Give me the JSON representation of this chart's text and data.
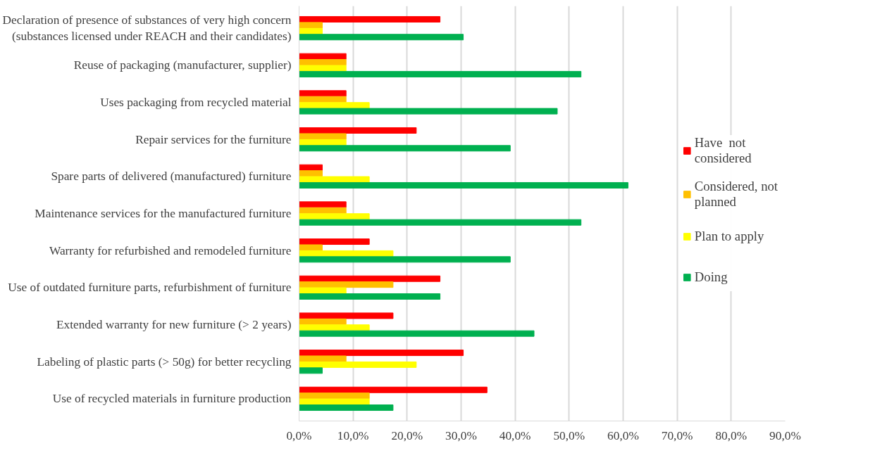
{
  "chart_data": {
    "type": "bar",
    "orientation": "horizontal",
    "categories": [
      "Declaration of presence of substances of very high concern (substances licensed under REACH and their candidates)",
      "Reuse of packaging (manufacturer, supplier)",
      "Uses packaging from recycled material",
      "Repair services for the furniture",
      "Spare parts of delivered (manufactured) furniture",
      "Maintenance services for the manufactured furniture",
      "Warranty for refurbished and remodeled furniture",
      "Use of outdated furniture parts, refurbishment of furniture",
      "Extended warranty for new furniture (> 2 years)",
      "Labeling of plastic parts (> 50g) for better recycling",
      "Use of recycled materials in furniture production"
    ],
    "series": [
      {
        "name": "Have  not considered",
        "color": "#ff0000",
        "values": [
          26.1,
          8.7,
          8.7,
          21.7,
          4.3,
          8.7,
          13.0,
          26.1,
          17.4,
          30.4,
          34.8
        ]
      },
      {
        "name": "Considered, not planned",
        "color": "#ffc000",
        "values": [
          4.3,
          8.7,
          8.7,
          8.7,
          4.3,
          8.7,
          4.3,
          17.4,
          8.7,
          8.7,
          13.0
        ]
      },
      {
        "name": "Plan to apply",
        "color": "#ffff00",
        "values": [
          4.3,
          8.7,
          13.0,
          8.7,
          13.0,
          13.0,
          17.4,
          8.7,
          13.0,
          21.7,
          13.0
        ]
      },
      {
        "name": "Doing",
        "color": "#00b050",
        "values": [
          30.4,
          52.2,
          47.8,
          39.1,
          60.9,
          52.2,
          39.1,
          26.1,
          43.5,
          4.3,
          17.4
        ]
      }
    ],
    "xlim": [
      0,
      90
    ],
    "xticks": [
      {
        "value": 0,
        "label": "0,0%"
      },
      {
        "value": 10,
        "label": "10,0%"
      },
      {
        "value": 20,
        "label": "20,0%"
      },
      {
        "value": 30,
        "label": "30,0%"
      },
      {
        "value": 40,
        "label": "40,0%"
      },
      {
        "value": 50,
        "label": "50,0%"
      },
      {
        "value": 60,
        "label": "60,0%"
      },
      {
        "value": 70,
        "label": "70,0%"
      },
      {
        "value": 80,
        "label": "80,0%"
      },
      {
        "value": 90,
        "label": "90,0%"
      }
    ],
    "grid": "x",
    "legend": "right"
  }
}
